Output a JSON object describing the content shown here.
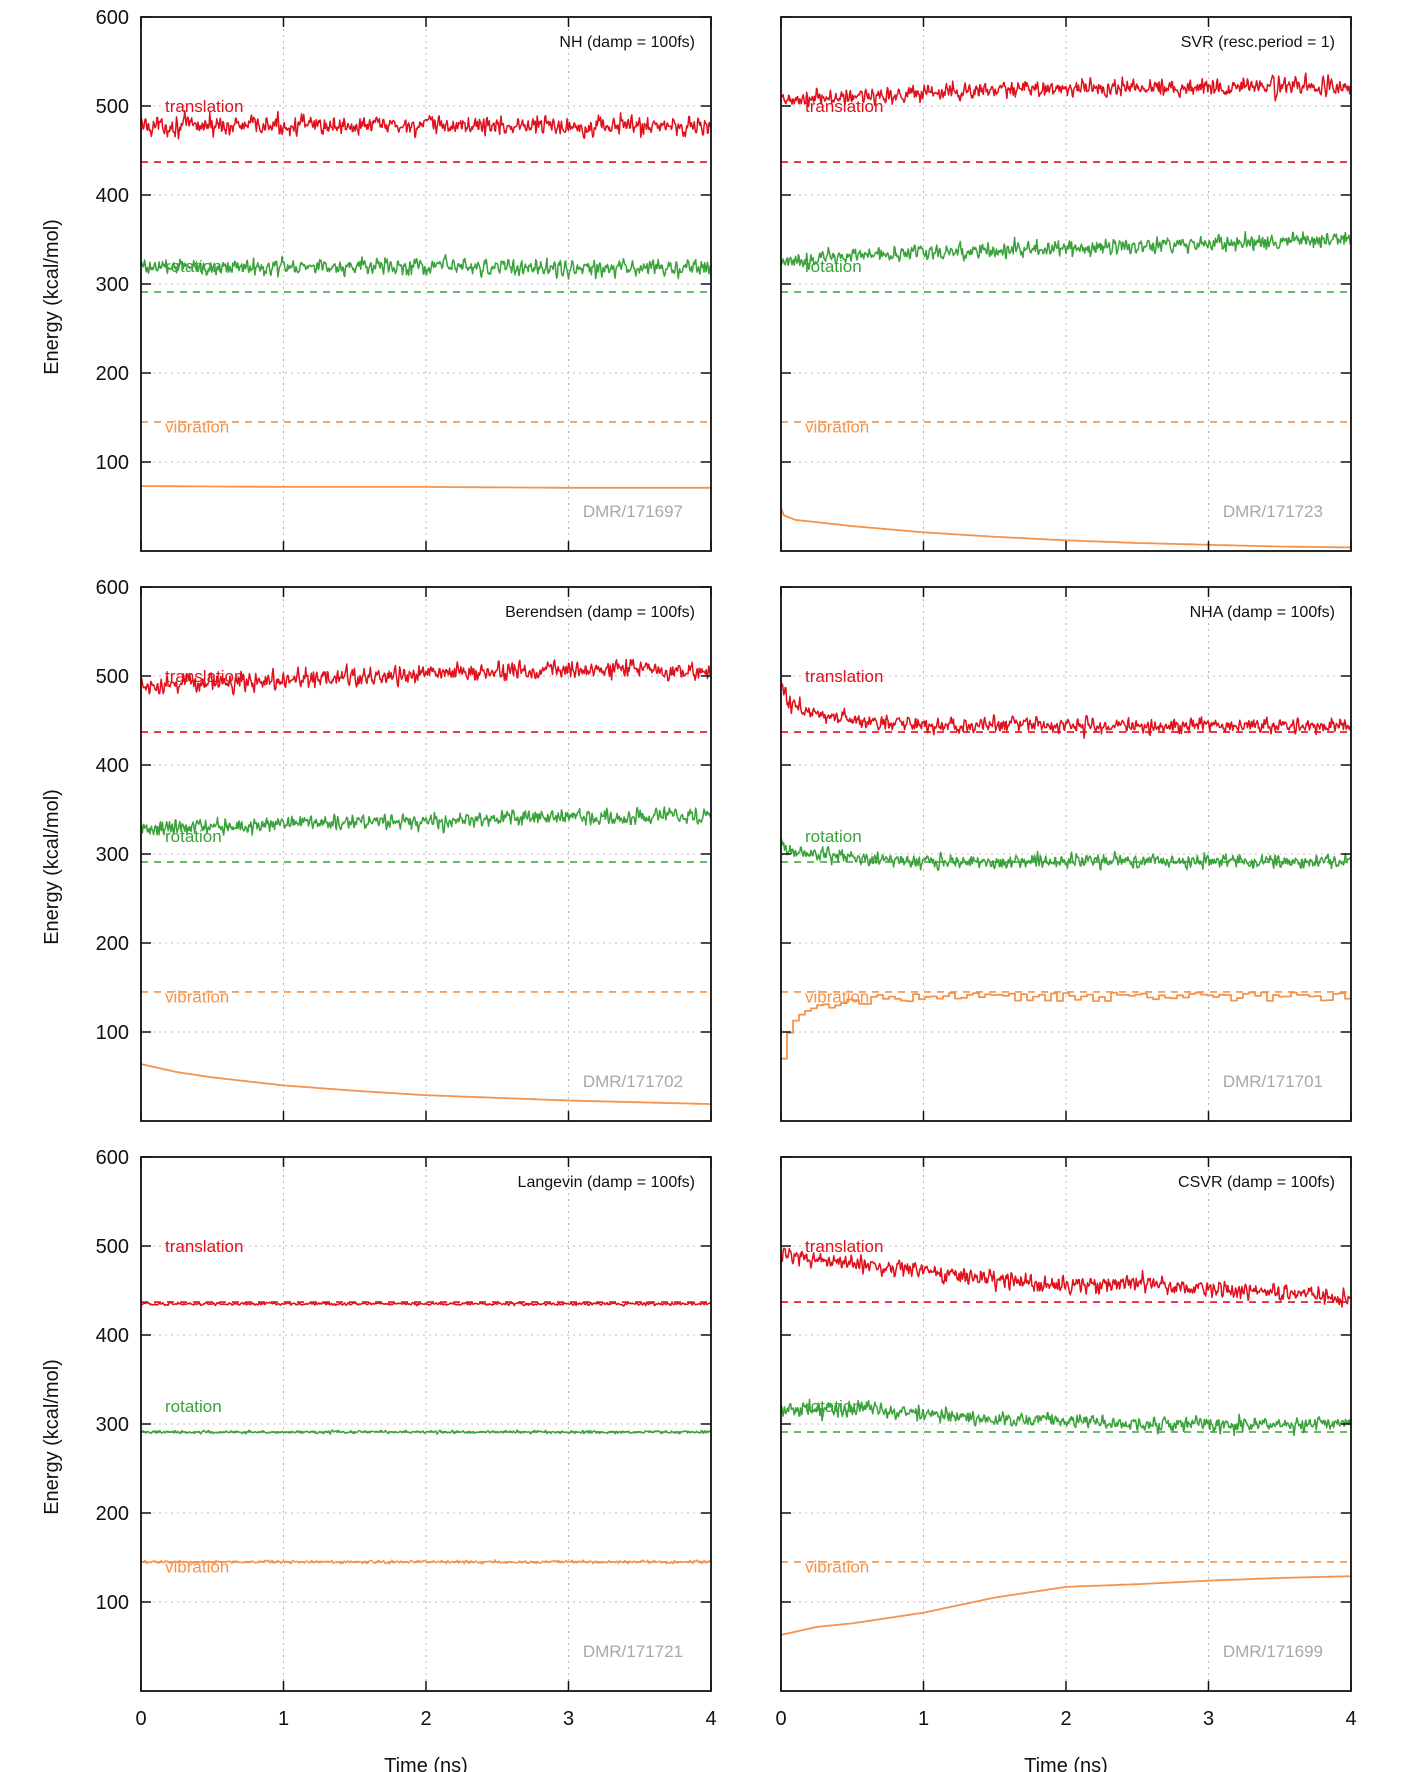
{
  "figure": {
    "colors": {
      "translation": "#e0101c",
      "rotation": "#3aa23a",
      "vibration": "#f5934a",
      "frame": "#111111",
      "grid": "#bbbbbb",
      "id_text": "#a8a8a8"
    }
  },
  "chart_data": [
    {
      "type": "line",
      "title": "NH (damp = 100fs)",
      "id_label": "DMR/171697",
      "xlabel": "Time (ns)",
      "ylabel": "Energy (kcal/mol)",
      "xlim": [
        0,
        4
      ],
      "ylim": [
        0,
        600
      ],
      "xticks": [
        "0",
        "1",
        "2",
        "3",
        "4"
      ],
      "yticks": [
        "100",
        "200",
        "300",
        "400",
        "500",
        "600"
      ],
      "grid": true,
      "series": [
        {
          "name": "translation",
          "kind": "noisy",
          "x": [
            0,
            4
          ],
          "y": [
            478,
            478
          ],
          "noise": 13,
          "reference": 437
        },
        {
          "name": "rotation",
          "kind": "noisy",
          "x": [
            0,
            4
          ],
          "y": [
            320,
            318
          ],
          "noise": 11,
          "reference": 291
        },
        {
          "name": "vibration",
          "kind": "smooth",
          "x": [
            0,
            1,
            2,
            3,
            4
          ],
          "y": [
            73,
            72,
            72,
            71,
            71
          ],
          "reference": 145
        }
      ]
    },
    {
      "type": "line",
      "title": "SVR (resc.period = 1)",
      "id_label": "DMR/171723",
      "xlabel": "Time (ns)",
      "ylabel": "Energy (kcal/mol)",
      "xlim": [
        0,
        4
      ],
      "ylim": [
        0,
        600
      ],
      "xticks": [
        "0",
        "1",
        "2",
        "3",
        "4"
      ],
      "yticks": [
        "100",
        "200",
        "300",
        "400",
        "500",
        "600"
      ],
      "grid": true,
      "series": [
        {
          "name": "translation",
          "kind": "noisy",
          "x": [
            0,
            1,
            2,
            3,
            4
          ],
          "y": [
            505,
            515,
            520,
            522,
            522
          ],
          "noise": 12,
          "reference": 437
        },
        {
          "name": "rotation",
          "kind": "noisy",
          "x": [
            0,
            1,
            2,
            3,
            4
          ],
          "y": [
            325,
            335,
            340,
            345,
            350
          ],
          "noise": 11,
          "reference": 291
        },
        {
          "name": "vibration",
          "kind": "smooth",
          "x": [
            0,
            0.02,
            0.1,
            0.5,
            1,
            1.5,
            2,
            2.5,
            3,
            3.5,
            4
          ],
          "y": [
            48,
            40,
            35,
            28,
            21,
            16,
            12,
            9,
            7,
            5,
            4
          ],
          "reference": 145
        }
      ]
    },
    {
      "type": "line",
      "title": "Berendsen (damp = 100fs)",
      "id_label": "DMR/171702",
      "xlabel": "Time (ns)",
      "ylabel": "Energy (kcal/mol)",
      "xlim": [
        0,
        4
      ],
      "ylim": [
        0,
        600
      ],
      "xticks": [
        "0",
        "1",
        "2",
        "3",
        "4"
      ],
      "yticks": [
        "100",
        "200",
        "300",
        "400",
        "500",
        "600"
      ],
      "grid": true,
      "series": [
        {
          "name": "translation",
          "kind": "noisy",
          "x": [
            0,
            1,
            2,
            3,
            4
          ],
          "y": [
            490,
            495,
            502,
            507,
            505
          ],
          "noise": 12,
          "reference": 437
        },
        {
          "name": "rotation",
          "kind": "noisy",
          "x": [
            0,
            1,
            2,
            3,
            4
          ],
          "y": [
            328,
            335,
            338,
            342,
            342
          ],
          "noise": 11,
          "reference": 291
        },
        {
          "name": "vibration",
          "kind": "smooth",
          "x": [
            0,
            0.25,
            0.5,
            1,
            1.5,
            2,
            2.5,
            3,
            3.5,
            4
          ],
          "y": [
            64,
            55,
            49,
            40,
            34,
            29,
            26,
            23,
            21,
            19
          ],
          "reference": 145
        }
      ]
    },
    {
      "type": "line",
      "title": "NHA (damp = 100fs)",
      "id_label": "DMR/171701",
      "xlabel": "Time (ns)",
      "ylabel": "Energy (kcal/mol)",
      "xlim": [
        0,
        4
      ],
      "ylim": [
        0,
        600
      ],
      "xticks": [
        "0",
        "1",
        "2",
        "3",
        "4"
      ],
      "yticks": [
        "100",
        "200",
        "300",
        "400",
        "500",
        "600"
      ],
      "grid": true,
      "series": [
        {
          "name": "translation",
          "kind": "noisy",
          "x": [
            0,
            0.05,
            0.3,
            0.6,
            1,
            4
          ],
          "y": [
            490,
            470,
            455,
            448,
            445,
            443
          ],
          "noise": 10,
          "reference": 437
        },
        {
          "name": "rotation",
          "kind": "noisy",
          "x": [
            0,
            0.05,
            0.3,
            0.6,
            1,
            4
          ],
          "y": [
            318,
            305,
            298,
            295,
            292,
            292
          ],
          "noise": 9,
          "reference": 291
        },
        {
          "name": "vibration",
          "kind": "steps",
          "x": [
            0,
            0.03,
            0.1,
            0.3,
            0.6,
            1,
            4
          ],
          "y": [
            70,
            95,
            118,
            130,
            136,
            139,
            140
          ],
          "noise": 5,
          "reference": 145
        }
      ]
    },
    {
      "type": "line",
      "title": "Langevin (damp = 100fs)",
      "id_label": "DMR/171721",
      "xlabel": "Time (ns)",
      "ylabel": "Energy (kcal/mol)",
      "xlim": [
        0,
        4
      ],
      "ylim": [
        0,
        600
      ],
      "xticks": [
        "0",
        "1",
        "2",
        "3",
        "4"
      ],
      "yticks": [
        "100",
        "200",
        "300",
        "400",
        "500",
        "600"
      ],
      "grid": true,
      "series": [
        {
          "name": "translation",
          "kind": "noisy",
          "x": [
            0,
            4
          ],
          "y": [
            435,
            435
          ],
          "noise": 2,
          "reference": 437
        },
        {
          "name": "rotation",
          "kind": "noisy",
          "x": [
            0,
            4
          ],
          "y": [
            291,
            291
          ],
          "noise": 2,
          "reference": 291
        },
        {
          "name": "vibration",
          "kind": "noisy",
          "x": [
            0,
            4
          ],
          "y": [
            145,
            145
          ],
          "noise": 2,
          "reference": 145
        }
      ]
    },
    {
      "type": "line",
      "title": "CSVR (damp = 100fs)",
      "id_label": "DMR/171699",
      "xlabel": "Time (ns)",
      "ylabel": "Energy (kcal/mol)",
      "xlim": [
        0,
        4
      ],
      "ylim": [
        0,
        600
      ],
      "xticks": [
        "0",
        "1",
        "2",
        "3",
        "4"
      ],
      "yticks": [
        "100",
        "200",
        "300",
        "400",
        "500",
        "600"
      ],
      "grid": true,
      "series": [
        {
          "name": "translation",
          "kind": "noisy",
          "x": [
            0,
            0.5,
            1,
            1.5,
            2,
            2.5,
            3,
            3.5,
            4
          ],
          "y": [
            490,
            480,
            470,
            462,
            455,
            458,
            452,
            448,
            440
          ],
          "noise": 11,
          "reference": 437
        },
        {
          "name": "rotation",
          "kind": "noisy",
          "x": [
            0,
            0.5,
            1,
            1.5,
            2,
            2.5,
            3,
            3.5,
            4
          ],
          "y": [
            315,
            318,
            312,
            305,
            305,
            300,
            300,
            298,
            300
          ],
          "noise": 10,
          "reference": 291
        },
        {
          "name": "vibration",
          "kind": "smooth",
          "x": [
            0,
            0.25,
            0.5,
            1,
            1.5,
            2,
            2.5,
            3,
            3.5,
            4
          ],
          "y": [
            63,
            72,
            76,
            88,
            105,
            117,
            120,
            124,
            127,
            129
          ],
          "reference": 145
        }
      ]
    }
  ]
}
